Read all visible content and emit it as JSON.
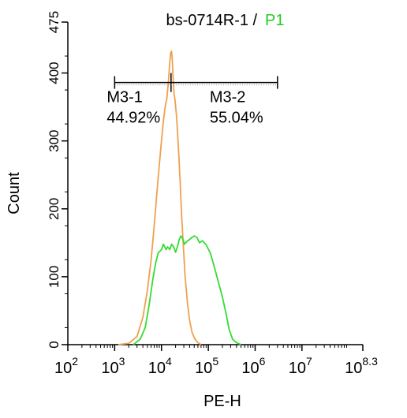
{
  "chart_data": {
    "type": "line",
    "title": "bs-0714R-1",
    "title_separator": " / ",
    "title_gate": "P1",
    "xlabel": "PE-H",
    "ylabel": "Count",
    "x_scale": "log",
    "xlim": [
      100,
      199526231
    ],
    "ylim": [
      0,
      475
    ],
    "x_ticks": [
      {
        "value": 100,
        "base": "10",
        "exp": "2"
      },
      {
        "value": 1000,
        "base": "10",
        "exp": "3"
      },
      {
        "value": 10000,
        "base": "10",
        "exp": "4"
      },
      {
        "value": 100000,
        "base": "10",
        "exp": "5"
      },
      {
        "value": 1000000,
        "base": "10",
        "exp": "6"
      },
      {
        "value": 10000000,
        "base": "10",
        "exp": "7"
      },
      {
        "value": 199526231,
        "base": "10",
        "exp": "8.3"
      }
    ],
    "y_ticks": [
      0,
      100,
      200,
      300,
      400,
      475
    ],
    "series": [
      {
        "color": "#F0A050",
        "points": [
          [
            1200,
            0
          ],
          [
            2000,
            2
          ],
          [
            3000,
            12
          ],
          [
            4000,
            40
          ],
          [
            5000,
            80
          ],
          [
            6000,
            125
          ],
          [
            7000,
            175
          ],
          [
            8000,
            225
          ],
          [
            9000,
            265
          ],
          [
            10000,
            300
          ],
          [
            11000,
            330
          ],
          [
            12000,
            350
          ],
          [
            13000,
            362
          ],
          [
            14000,
            385
          ],
          [
            15000,
            415
          ],
          [
            15700,
            430
          ],
          [
            16400,
            432
          ],
          [
            17000,
            420
          ],
          [
            17800,
            390
          ],
          [
            18500,
            370
          ],
          [
            19500,
            360
          ],
          [
            21000,
            335
          ],
          [
            23000,
            290
          ],
          [
            25000,
            240
          ],
          [
            27000,
            190
          ],
          [
            29000,
            150
          ],
          [
            32000,
            100
          ],
          [
            36000,
            60
          ],
          [
            40000,
            35
          ],
          [
            45000,
            18
          ],
          [
            52000,
            8
          ],
          [
            60000,
            3
          ],
          [
            70000,
            0
          ]
        ]
      },
      {
        "color": "#33DD33",
        "points": [
          [
            2500,
            0
          ],
          [
            3500,
            8
          ],
          [
            4500,
            25
          ],
          [
            5500,
            60
          ],
          [
            6500,
            95
          ],
          [
            7500,
            120
          ],
          [
            8500,
            135
          ],
          [
            10000,
            140
          ],
          [
            11000,
            148
          ],
          [
            12500,
            140
          ],
          [
            13500,
            144
          ],
          [
            15000,
            140
          ],
          [
            16500,
            148
          ],
          [
            18500,
            143
          ],
          [
            20000,
            136
          ],
          [
            22000,
            145
          ],
          [
            24000,
            155
          ],
          [
            26000,
            160
          ],
          [
            28000,
            157
          ],
          [
            31000,
            148
          ],
          [
            35000,
            152
          ],
          [
            40000,
            155
          ],
          [
            45000,
            158
          ],
          [
            50000,
            160
          ],
          [
            57000,
            158
          ],
          [
            65000,
            150
          ],
          [
            75000,
            153
          ],
          [
            90000,
            147
          ],
          [
            110000,
            135
          ],
          [
            130000,
            118
          ],
          [
            160000,
            95
          ],
          [
            200000,
            70
          ],
          [
            240000,
            45
          ],
          [
            280000,
            22
          ],
          [
            330000,
            8
          ],
          [
            400000,
            3
          ],
          [
            500000,
            0
          ]
        ]
      }
    ],
    "markers": [
      {
        "label": "M3-1",
        "percent": "44.92%",
        "x_start": 1000,
        "x_end": 16000,
        "level": 400
      },
      {
        "label": "M3-2",
        "percent": "55.04%",
        "x_start": 16000,
        "x_end": 3000000,
        "level": 400
      }
    ],
    "gate_divider": {
      "x": 16000,
      "level": 400
    },
    "axis_color": "#000000",
    "grid": false,
    "legend": "none"
  }
}
